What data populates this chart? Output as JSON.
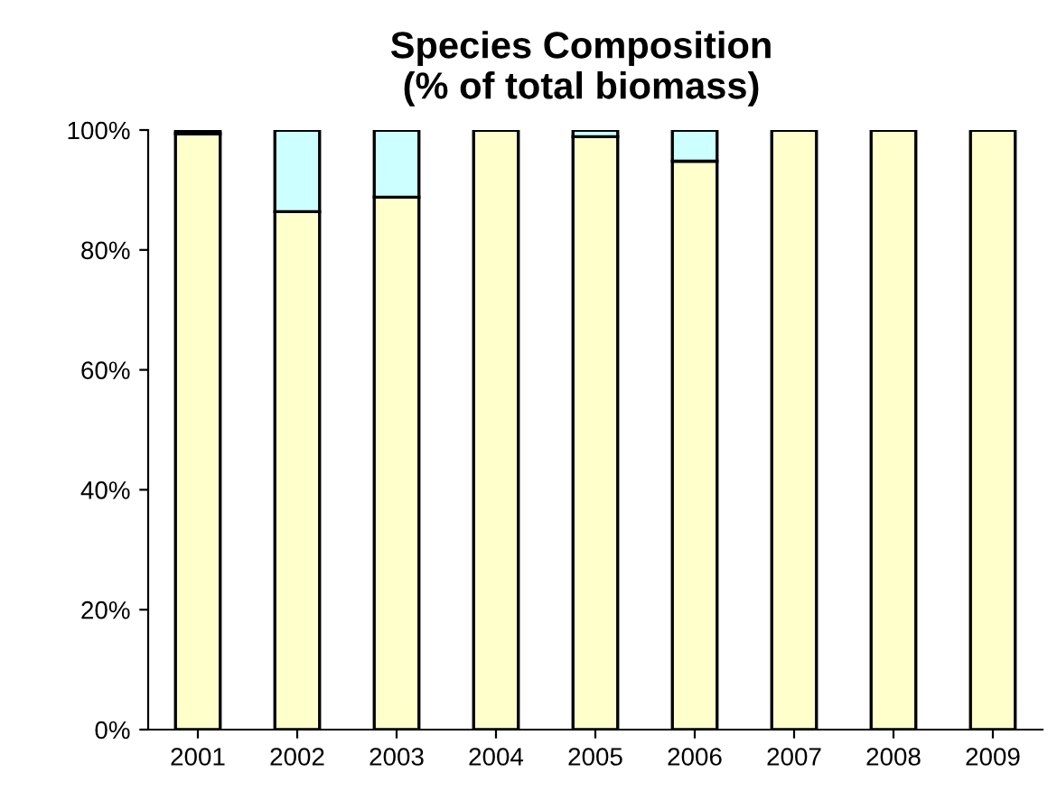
{
  "chart_data": {
    "type": "bar",
    "title": "Species Composition\n(% of total biomass)",
    "stacked": true,
    "categories": [
      "2001",
      "2002",
      "2003",
      "2004",
      "2005",
      "2006",
      "2007",
      "2008",
      "2009"
    ],
    "series": [
      {
        "color": "#ffffcc",
        "values": [
          99.4,
          86.4,
          88.8,
          100,
          98.9,
          94.8,
          100,
          100,
          100
        ]
      },
      {
        "color": "#ccffff",
        "values": [
          0,
          13.6,
          11.2,
          0,
          1.1,
          5.2,
          0,
          0,
          0
        ]
      },
      {
        "color": "#000000",
        "values": [
          0.6,
          0,
          0,
          0,
          0,
          0,
          0,
          0,
          0
        ]
      }
    ],
    "ylim": [
      0,
      100
    ],
    "yticks": [
      {
        "value": 0,
        "label": "0%"
      },
      {
        "value": 20,
        "label": "20%"
      },
      {
        "value": 40,
        "label": "40%"
      },
      {
        "value": 60,
        "label": "60%"
      },
      {
        "value": 80,
        "label": "80%"
      },
      {
        "value": 100,
        "label": "100%"
      }
    ],
    "grid": false,
    "legend": false
  }
}
